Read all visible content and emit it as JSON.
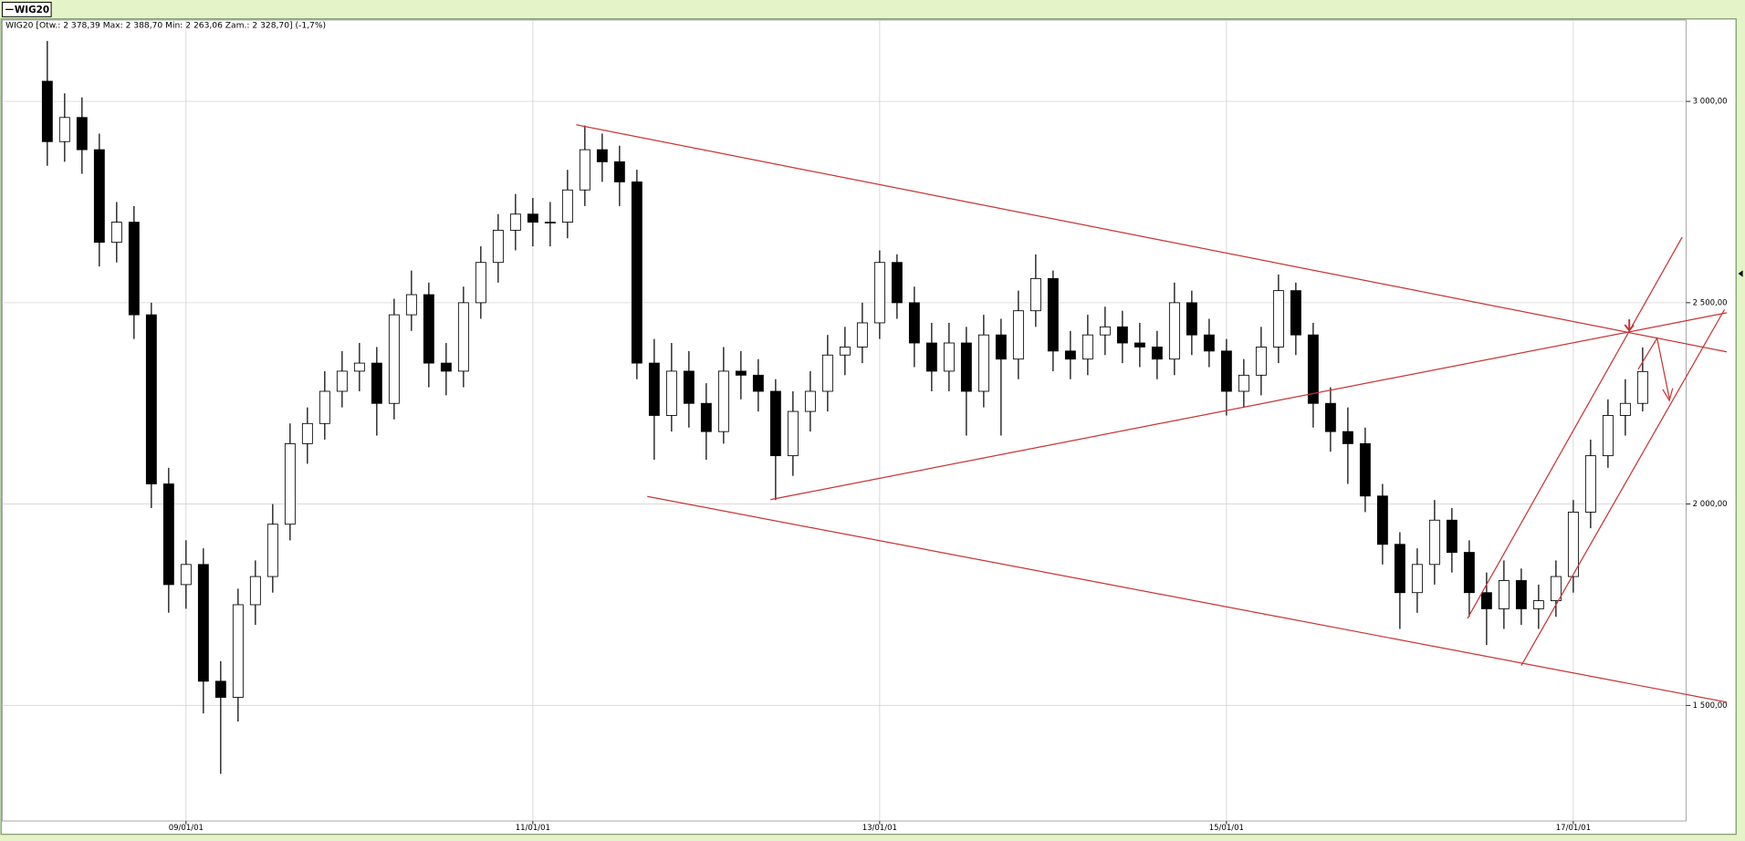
{
  "chart_data": {
    "type": "candlestick",
    "legend_label": "WIG20",
    "title": "WIG20 [Otw.: 2 378,39   Max: 2 388,70   Min: 2 263,06   Zam.: 2 328,70] (-1,7%)",
    "x": [
      2008.2,
      2008.3,
      2008.4,
      2008.5,
      2008.6,
      2008.7,
      2008.8,
      2008.9,
      2009.0,
      2009.1,
      2009.2,
      2009.3,
      2009.4,
      2009.5,
      2009.6,
      2009.7,
      2009.8,
      2009.9,
      2010.0,
      2010.1,
      2010.2,
      2010.3,
      2010.4,
      2010.5,
      2010.6,
      2010.7,
      2010.8,
      2010.9,
      2011.0,
      2011.1,
      2011.2,
      2011.3,
      2011.4,
      2011.5,
      2011.6,
      2011.7,
      2011.8,
      2011.9,
      2012.0,
      2012.1,
      2012.2,
      2012.3,
      2012.4,
      2012.5,
      2012.6,
      2012.7,
      2012.8,
      2012.9,
      2013.0,
      2013.1,
      2013.2,
      2013.3,
      2013.4,
      2013.5,
      2013.6,
      2013.7,
      2013.8,
      2013.9,
      2014.0,
      2014.1,
      2014.2,
      2014.3,
      2014.4,
      2014.5,
      2014.6,
      2014.7,
      2014.8,
      2014.9,
      2015.0,
      2015.1,
      2015.2,
      2015.3,
      2015.4,
      2015.5,
      2015.6,
      2015.7,
      2015.8,
      2015.9,
      2016.0,
      2016.1,
      2016.2,
      2016.3,
      2016.4,
      2016.5,
      2016.6,
      2016.7,
      2016.8,
      2016.9,
      2017.0,
      2017.1,
      2017.2,
      2017.3,
      2017.4
    ],
    "open": [
      3050,
      2900,
      2960,
      2880,
      2650,
      2700,
      2470,
      2050,
      1800,
      1850,
      1560,
      1520,
      1750,
      1820,
      1950,
      2150,
      2200,
      2280,
      2330,
      2350,
      2250,
      2470,
      2520,
      2350,
      2330,
      2500,
      2600,
      2680,
      2720,
      2700,
      2700,
      2780,
      2880,
      2850,
      2800,
      2350,
      2220,
      2330,
      2250,
      2180,
      2330,
      2320,
      2280,
      2120,
      2230,
      2280,
      2370,
      2390,
      2450,
      2600,
      2500,
      2400,
      2330,
      2400,
      2280,
      2420,
      2360,
      2480,
      2560,
      2380,
      2360,
      2420,
      2440,
      2400,
      2390,
      2360,
      2500,
      2420,
      2380,
      2280,
      2320,
      2390,
      2530,
      2420,
      2250,
      2180,
      2150,
      2020,
      1900,
      1780,
      1850,
      1960,
      1880,
      1780,
      1740,
      1810,
      1740,
      1760,
      1820,
      1980,
      2120,
      2220,
      2250
    ],
    "high": [
      3150,
      3020,
      3010,
      2920,
      2750,
      2740,
      2500,
      2090,
      1910,
      1890,
      1610,
      1790,
      1860,
      2000,
      2200,
      2240,
      2330,
      2380,
      2400,
      2390,
      2510,
      2580,
      2550,
      2400,
      2540,
      2640,
      2720,
      2770,
      2760,
      2750,
      2830,
      2940,
      2920,
      2890,
      2830,
      2410,
      2400,
      2380,
      2300,
      2390,
      2380,
      2360,
      2310,
      2280,
      2330,
      2420,
      2440,
      2500,
      2630,
      2620,
      2540,
      2450,
      2450,
      2440,
      2470,
      2460,
      2530,
      2620,
      2580,
      2430,
      2470,
      2490,
      2480,
      2450,
      2430,
      2550,
      2530,
      2460,
      2410,
      2360,
      2440,
      2570,
      2550,
      2450,
      2290,
      2240,
      2190,
      2050,
      1930,
      1890,
      2010,
      1990,
      1910,
      1830,
      1860,
      1840,
      1800,
      1860,
      2010,
      2160,
      2260,
      2310,
      2389
    ],
    "low": [
      2840,
      2850,
      2820,
      2590,
      2600,
      2410,
      1990,
      1730,
      1740,
      1480,
      1330,
      1460,
      1700,
      1780,
      1910,
      2100,
      2160,
      2240,
      2280,
      2170,
      2210,
      2430,
      2290,
      2270,
      2290,
      2460,
      2550,
      2630,
      2640,
      2640,
      2660,
      2740,
      2800,
      2740,
      2310,
      2110,
      2180,
      2190,
      2110,
      2150,
      2260,
      2230,
      2010,
      2070,
      2180,
      2230,
      2320,
      2350,
      2410,
      2460,
      2340,
      2280,
      2280,
      2170,
      2240,
      2170,
      2310,
      2440,
      2330,
      2310,
      2320,
      2370,
      2350,
      2340,
      2310,
      2320,
      2370,
      2340,
      2220,
      2240,
      2270,
      2350,
      2370,
      2190,
      2130,
      2050,
      1980,
      1850,
      1690,
      1730,
      1800,
      1830,
      1720,
      1650,
      1690,
      1700,
      1690,
      1720,
      1780,
      1940,
      2090,
      2170,
      2230
    ],
    "close": [
      2900,
      2960,
      2880,
      2650,
      2700,
      2470,
      2050,
      1800,
      1850,
      1560,
      1520,
      1750,
      1820,
      1950,
      2150,
      2200,
      2280,
      2330,
      2350,
      2250,
      2470,
      2520,
      2350,
      2330,
      2500,
      2600,
      2680,
      2720,
      2700,
      2700,
      2780,
      2880,
      2850,
      2800,
      2350,
      2220,
      2330,
      2250,
      2180,
      2330,
      2320,
      2280,
      2120,
      2230,
      2280,
      2370,
      2390,
      2450,
      2600,
      2500,
      2400,
      2330,
      2400,
      2280,
      2420,
      2360,
      2480,
      2560,
      2380,
      2360,
      2420,
      2440,
      2400,
      2390,
      2360,
      2500,
      2420,
      2380,
      2280,
      2320,
      2390,
      2530,
      2420,
      2250,
      2180,
      2150,
      2020,
      1900,
      1780,
      1850,
      1960,
      1880,
      1780,
      1740,
      1810,
      1740,
      1760,
      1820,
      1980,
      2120,
      2220,
      2250,
      2329
    ],
    "color_up": "#ffffff",
    "color_down": "#000000",
    "xlim": [
      2007.94,
      2017.65
    ],
    "xticks": [
      {
        "value": 2009,
        "label": "09/01/01"
      },
      {
        "value": 2011,
        "label": "11/01/01"
      },
      {
        "value": 2013,
        "label": "13/01/01"
      },
      {
        "value": 2015,
        "label": "15/01/01"
      },
      {
        "value": 2017,
        "label": "17/01/01"
      }
    ],
    "ylim": [
      1213,
      3202
    ],
    "yticks": [
      {
        "value": 1500,
        "label": "1 500,00"
      },
      {
        "value": 2000,
        "label": "2 000,00"
      },
      {
        "value": 2500,
        "label": "2 500,00"
      },
      {
        "value": 3000,
        "label": "3 000,00"
      }
    ],
    "grid": true,
    "trendline_color": "#c83232",
    "trendlines": [
      {
        "x": [
          2011.25,
          2017.885
        ],
        "y": [
          2942,
          2378
        ]
      },
      {
        "x": [
          2011.66,
          2017.885
        ],
        "y": [
          2019,
          1508
        ]
      },
      {
        "x": [
          2012.37,
          2017.885
        ],
        "y": [
          2011,
          2475
        ]
      },
      {
        "x": [
          2016.39,
          2017.628
        ],
        "y": [
          1716,
          2663
        ]
      },
      {
        "x": [
          2016.7,
          2017.872
        ],
        "y": [
          1599,
          2483
        ]
      }
    ]
  }
}
